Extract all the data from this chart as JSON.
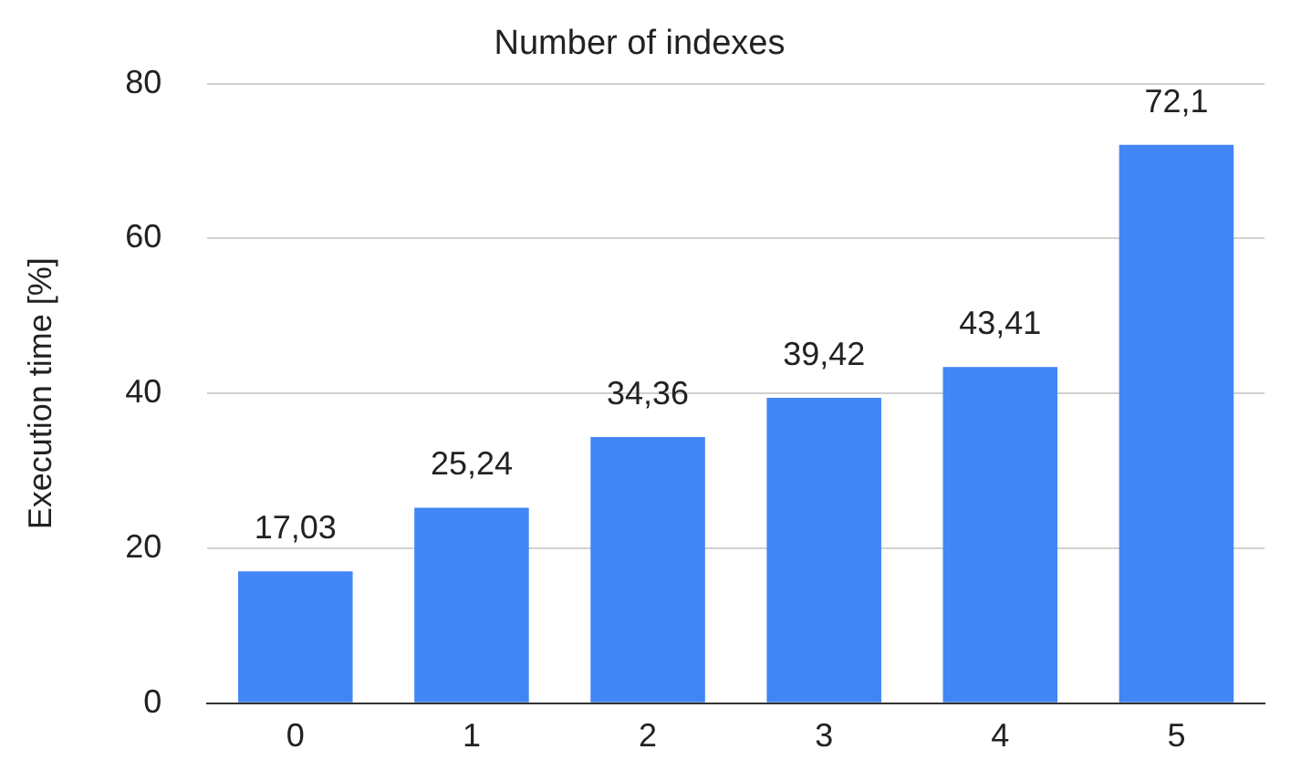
{
  "chart_data": {
    "type": "bar",
    "title": "Number of indexes",
    "ylabel": "Execution time [%]",
    "categories": [
      "0",
      "1",
      "2",
      "3",
      "4",
      "5"
    ],
    "values": [
      17.03,
      25.24,
      34.36,
      39.42,
      43.41,
      72.1
    ],
    "value_labels": [
      "17,03",
      "25,24",
      "34,36",
      "39,42",
      "43,41",
      "72,1"
    ],
    "color": "#4285f4",
    "ylim": [
      0,
      80
    ],
    "yticks": [
      0,
      20,
      40,
      60,
      80
    ],
    "grid": "y",
    "legend": false
  }
}
